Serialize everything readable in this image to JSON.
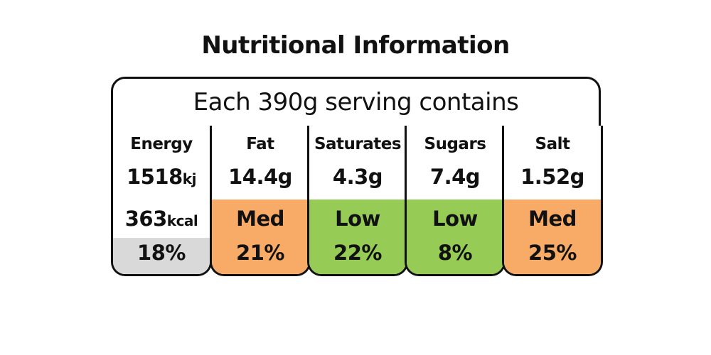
{
  "title": "Nutritional Information",
  "serving": "Each 390g serving contains",
  "colors": {
    "med": "#F8AB66",
    "low": "#96CC55",
    "energy_band": "#D9D9D9"
  },
  "energy": {
    "label": "Energy",
    "kj_value": "1518",
    "kj_unit": "kj",
    "kcal_value": "363",
    "kcal_unit": "kcal",
    "percent": "18%"
  },
  "nutrients": [
    {
      "label": "Fat",
      "amount": "14.4g",
      "level": "Med",
      "percent": "21%"
    },
    {
      "label": "Saturates",
      "amount": "4.3g",
      "level": "Low",
      "percent": "22%"
    },
    {
      "label": "Sugars",
      "amount": "7.4g",
      "level": "Low",
      "percent": "8%"
    },
    {
      "label": "Salt",
      "amount": "1.52g",
      "level": "Med",
      "percent": "25%"
    }
  ]
}
